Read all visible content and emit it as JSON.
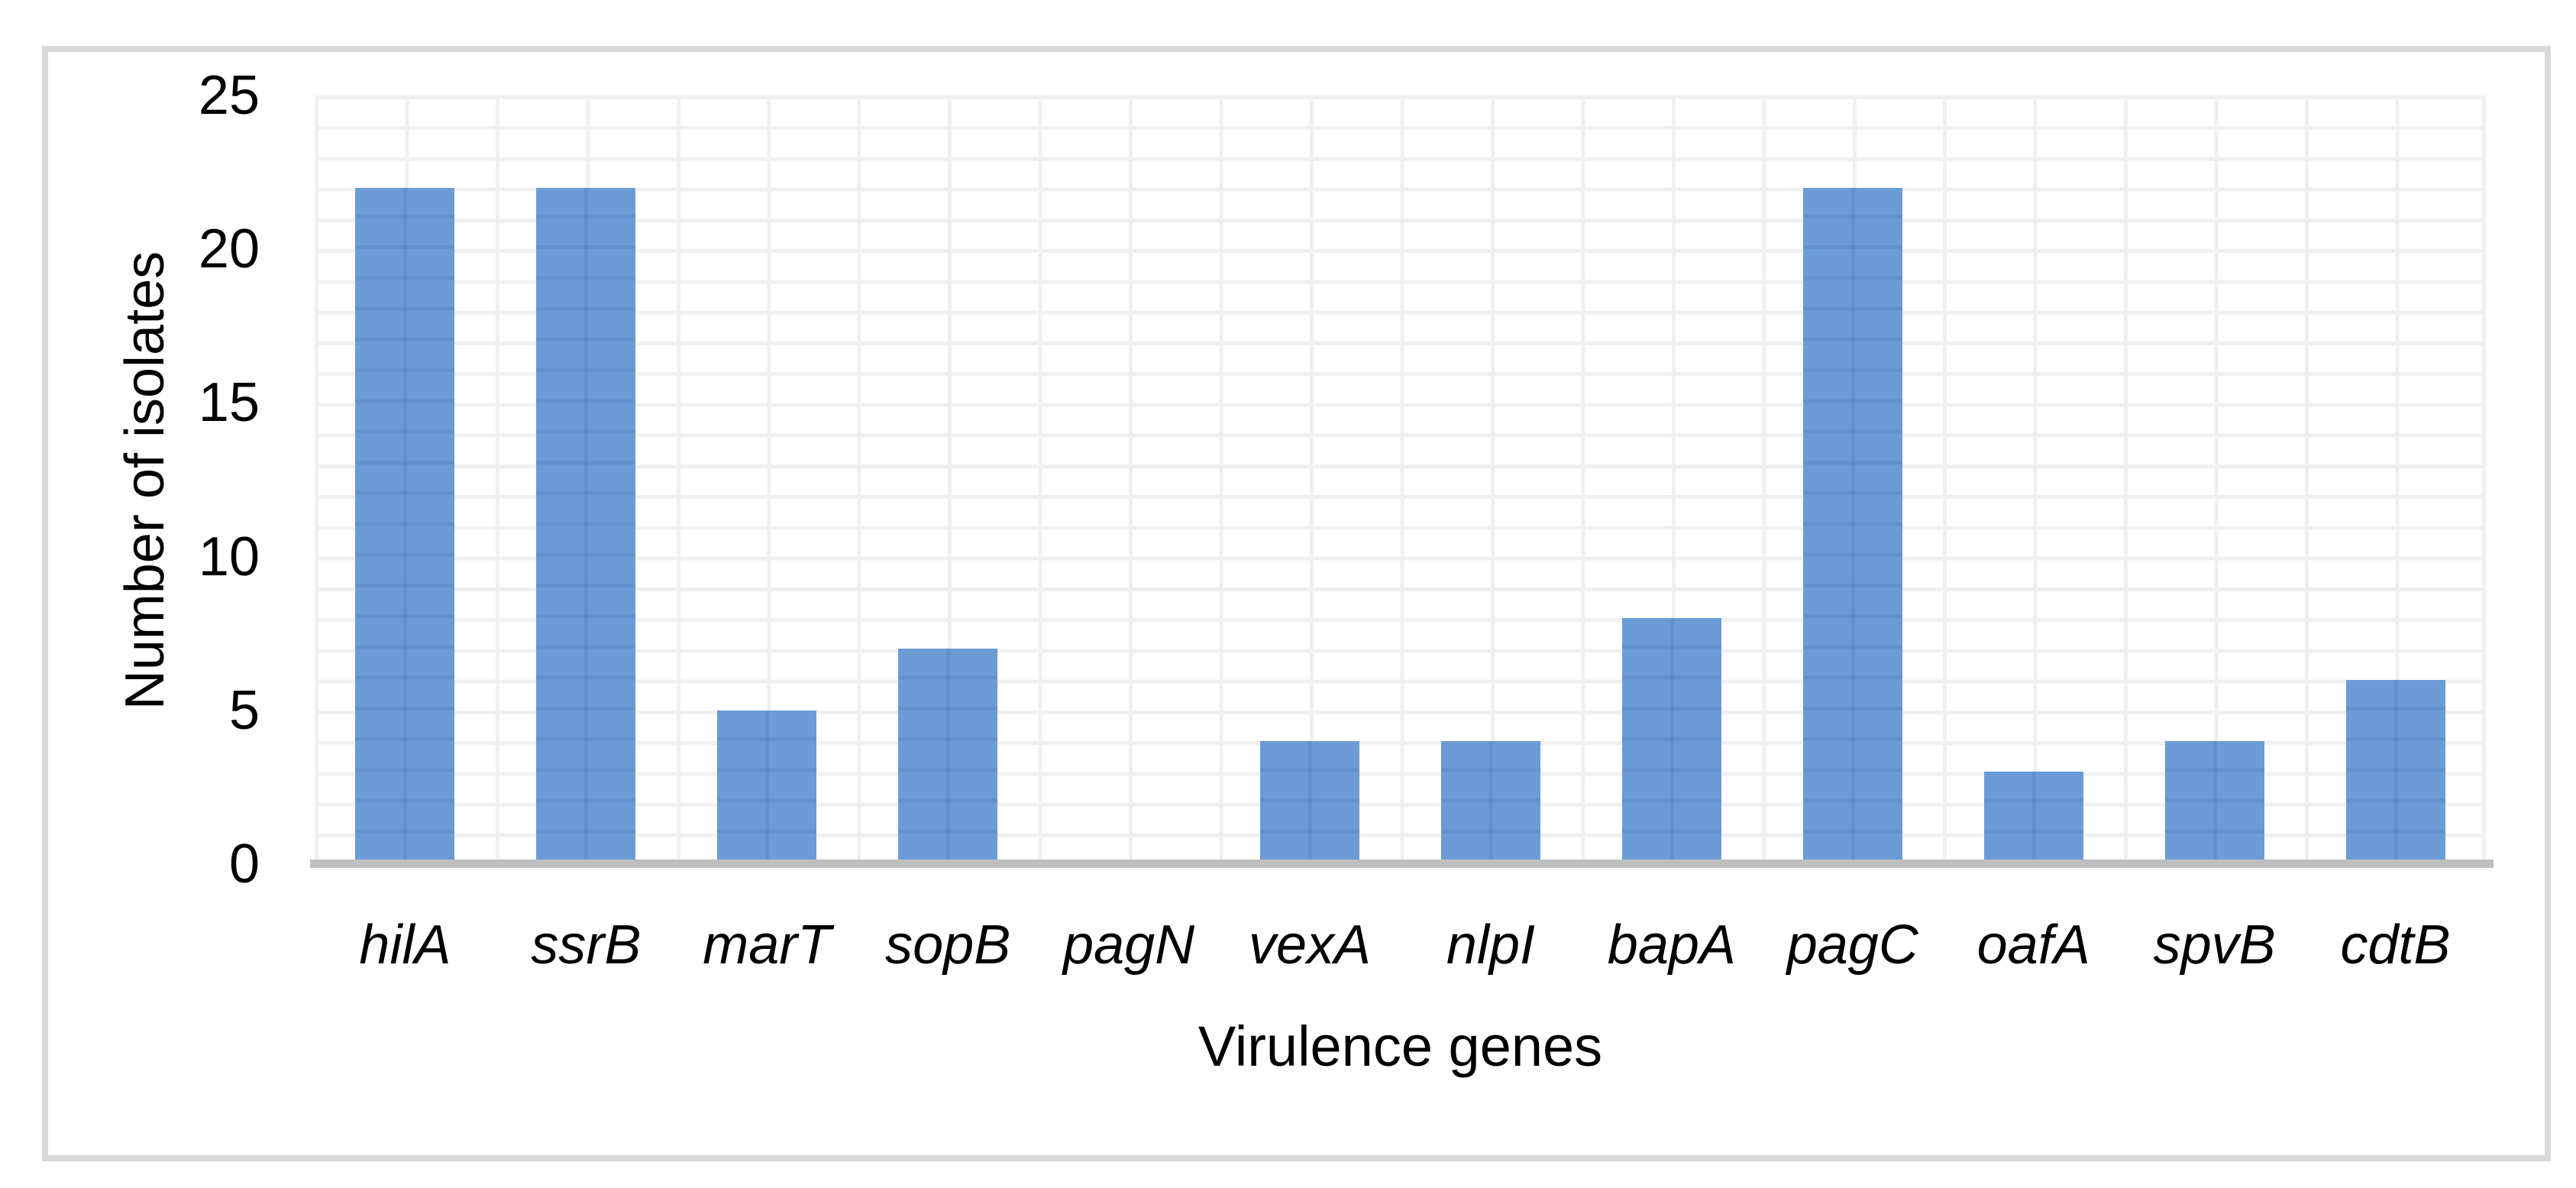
{
  "figure": {
    "background": "#ffffff",
    "frame_border_color": "#d9d9d9"
  },
  "chart_data": {
    "type": "bar",
    "title": "",
    "categories": [
      "hilA",
      "ssrB",
      "marT",
      "sopB",
      "pagN",
      "vexA",
      "nlpI",
      "bapA",
      "pagC",
      "oafA",
      "spvB",
      "cdtB"
    ],
    "values": [
      22,
      22,
      5,
      7,
      0,
      4,
      4,
      8,
      22,
      3,
      4,
      6
    ],
    "xlabel": "Virulence genes",
    "ylabel": "Number of isolates",
    "ylim": [
      0,
      25
    ],
    "yticks": [
      0,
      5,
      10,
      15,
      20,
      25
    ],
    "grid": {
      "horizontal_minor_every": 1,
      "vertical_minor_every": 0.5,
      "color": "#f0f0f0"
    },
    "legend_position": "none",
    "bar_color": "#6b9cd6",
    "axis_line_color": "#bfbfbf",
    "category_label_style": "italic"
  }
}
